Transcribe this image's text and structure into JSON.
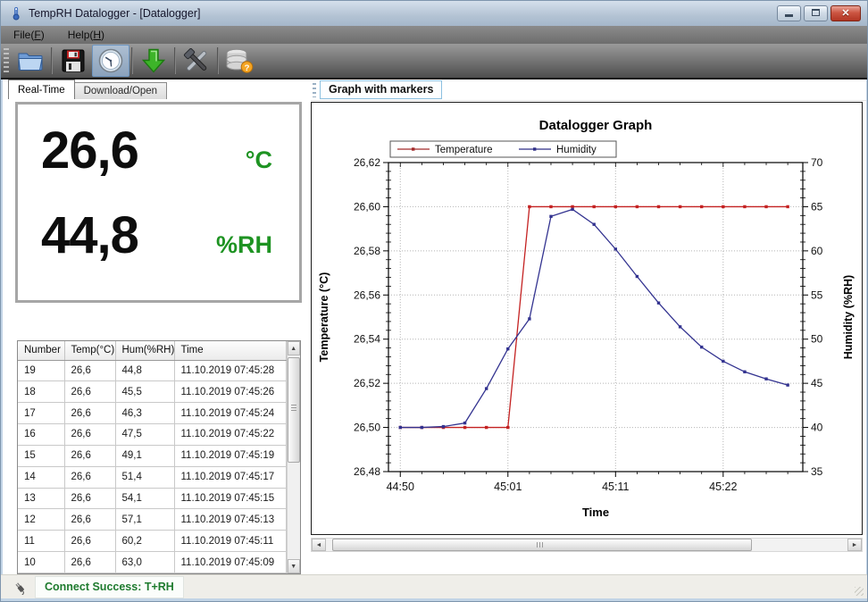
{
  "window": {
    "title": "TempRH Datalogger - [Datalogger]"
  },
  "menu": {
    "items": [
      {
        "pre": "File(",
        "key": "F",
        "post": ")"
      },
      {
        "pre": "Help(",
        "key": "H",
        "post": ")"
      }
    ]
  },
  "toolbar": {
    "buttons": [
      {
        "name": "open",
        "icon": "folder-icon"
      },
      {
        "name": "save",
        "icon": "floppy-icon"
      },
      {
        "name": "realtime",
        "icon": "clock-icon",
        "active": true
      },
      {
        "name": "download",
        "icon": "green-down-arrow-icon"
      },
      {
        "name": "settings",
        "icon": "tools-icon"
      },
      {
        "name": "database-help",
        "icon": "database-question-icon"
      }
    ]
  },
  "tabs": [
    {
      "label": "Real-Time",
      "active": true
    },
    {
      "label": "Download/Open",
      "active": false
    }
  ],
  "readout": {
    "temperature": "26,6",
    "temperature_unit": "°C",
    "humidity": "44,8",
    "humidity_unit": "%RH",
    "unit_color": "#1e9322",
    "value_color": "#0d0d0d"
  },
  "table": {
    "headers": [
      "Number",
      "Temp(°C)",
      "Hum(%RH)",
      "Time"
    ],
    "rows": [
      [
        "19",
        "26,6",
        "44,8",
        "11.10.2019 07:45:28"
      ],
      [
        "18",
        "26,6",
        "45,5",
        "11.10.2019 07:45:26"
      ],
      [
        "17",
        "26,6",
        "46,3",
        "11.10.2019 07:45:24"
      ],
      [
        "16",
        "26,6",
        "47,5",
        "11.10.2019 07:45:22"
      ],
      [
        "15",
        "26,6",
        "49,1",
        "11.10.2019 07:45:19"
      ],
      [
        "14",
        "26,6",
        "51,4",
        "11.10.2019 07:45:17"
      ],
      [
        "13",
        "26,6",
        "54,1",
        "11.10.2019 07:45:15"
      ],
      [
        "12",
        "26,6",
        "57,1",
        "11.10.2019 07:45:13"
      ],
      [
        "11",
        "26,6",
        "60,2",
        "11.10.2019 07:45:11"
      ],
      [
        "10",
        "26,6",
        "63,0",
        "11.10.2019 07:45:09"
      ]
    ]
  },
  "graph_panel": {
    "button_label": "Graph with markers"
  },
  "chart_data": {
    "type": "line",
    "title": "Datalogger Graph",
    "xlabel": "Time",
    "grid": "dotted",
    "legend_position": "top",
    "left_axis": {
      "label": "Temperature (°C)",
      "min": 26.48,
      "max": 26.62,
      "tick_labels": [
        "26,48",
        "26,50",
        "26,52",
        "26,54",
        "26,56",
        "26,58",
        "26,60",
        "26,62"
      ],
      "minor_divisions": 5
    },
    "right_axis": {
      "label": "Humidity (%RH)",
      "min": 35,
      "max": 70,
      "tick_labels": [
        "35",
        "40",
        "45",
        "50",
        "55",
        "60",
        "65",
        "70"
      ],
      "minor_divisions": 5
    },
    "x_axis": {
      "range": [
        0.45,
        19.7
      ],
      "minor_step": 1,
      "ticks": [
        {
          "x": 1,
          "label": "44:50"
        },
        {
          "x": 6,
          "label": "45:01"
        },
        {
          "x": 11,
          "label": "45:11"
        },
        {
          "x": 16,
          "label": "45:22"
        }
      ]
    },
    "x": [
      1,
      2,
      3,
      4,
      5,
      6,
      7,
      8,
      9,
      10,
      11,
      12,
      13,
      14,
      15,
      16,
      17,
      18,
      19
    ],
    "series": [
      {
        "name": "Temperature",
        "axis": "left",
        "color": "#c42222",
        "legend_color": "#a22a2a",
        "values": [
          26.5,
          26.5,
          26.5,
          26.5,
          26.5,
          26.5,
          26.6,
          26.6,
          26.6,
          26.6,
          26.6,
          26.6,
          26.6,
          26.6,
          26.6,
          26.6,
          26.6,
          26.6,
          26.6
        ]
      },
      {
        "name": "Humidity",
        "axis": "right",
        "color": "#333390",
        "legend_color": "#2f2f86",
        "values": [
          40.0,
          40.0,
          40.1,
          40.5,
          44.4,
          48.9,
          52.3,
          63.9,
          64.7,
          63.0,
          60.2,
          57.1,
          54.1,
          51.4,
          49.1,
          47.5,
          46.3,
          45.5,
          44.8
        ]
      }
    ]
  },
  "status": {
    "message": "Connect Success: T+RH",
    "color": "#1e7b2e"
  }
}
